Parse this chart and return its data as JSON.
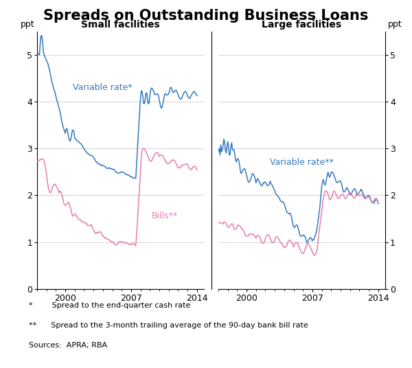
{
  "title": "Spreads on Outstanding Business Loans",
  "title_fontsize": 15,
  "left_panel_title": "Small facilities",
  "right_panel_title": "Large facilities",
  "ylabel_left": "ppt",
  "ylabel_right": "ppt",
  "ylim": [
    0,
    5.5
  ],
  "yticks": [
    0,
    1,
    2,
    3,
    4,
    5
  ],
  "footnote1": "*        Spread to the end-quarter cash rate",
  "footnote2": "**      Spread to the 3-month trailing average of the 90-day bank bill rate",
  "footnote3": "Sources:  APRA; RBA",
  "color_blue": "#3478BE",
  "color_pink": "#E87DAD",
  "background_color": "#ffffff",
  "grid_color": "#cccccc",
  "label_var_small": "Variable rate*",
  "label_bills_small": "Bills**",
  "label_var_large": "Variable rate**"
}
